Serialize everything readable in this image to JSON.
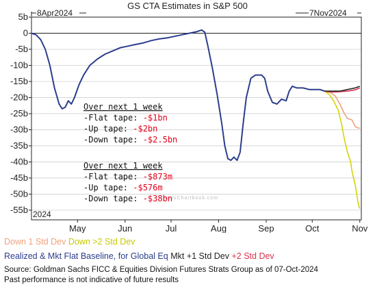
{
  "chart_data": {
    "type": "line",
    "title": "GS CTA Estimates in S&P 500",
    "start_label": "8Apr2024",
    "end_label": "7Nov2024",
    "year_label": "2024",
    "ylim": [
      -58,
      5
    ],
    "y_ticks": [
      5,
      0,
      -5,
      -10,
      -15,
      -20,
      -25,
      -30,
      -35,
      -40,
      -45,
      -50,
      -55
    ],
    "y_tick_labels": [
      "5b",
      "0",
      "-5b",
      "-10b",
      "-15b",
      "-20b",
      "-25b",
      "-30b",
      "-35b",
      "-40b",
      "-45b",
      "-50b",
      "-55b"
    ],
    "x_tick_labels": [
      {
        "label": "May",
        "day": 30
      },
      {
        "label": "Jun",
        "day": 61
      },
      {
        "label": "Jul",
        "day": 91
      },
      {
        "label": "Aug",
        "day": 122
      },
      {
        "label": "Sep",
        "day": 153
      },
      {
        "label": "Oct",
        "day": 183
      },
      {
        "label": "Nov",
        "day": 214
      }
    ],
    "xlim_days": [
      0,
      215
    ],
    "series": [
      {
        "name": "Realized & Mkt Flat Baseline, for Global Eq",
        "color": "#2b3d8c",
        "points": [
          [
            0,
            0
          ],
          [
            3,
            -0.5
          ],
          [
            6,
            -2
          ],
          [
            9,
            -5
          ],
          [
            12,
            -10
          ],
          [
            15,
            -17
          ],
          [
            18,
            -22
          ],
          [
            20,
            -23.5
          ],
          [
            22,
            -23
          ],
          [
            24,
            -21
          ],
          [
            26,
            -22
          ],
          [
            28,
            -20
          ],
          [
            31,
            -16
          ],
          [
            34,
            -13
          ],
          [
            38,
            -10
          ],
          [
            43,
            -8
          ],
          [
            48,
            -6.5
          ],
          [
            53,
            -5.5
          ],
          [
            58,
            -4.5
          ],
          [
            63,
            -4
          ],
          [
            68,
            -3.5
          ],
          [
            73,
            -3
          ],
          [
            78,
            -2.3
          ],
          [
            83,
            -1.8
          ],
          [
            88,
            -1.5
          ],
          [
            93,
            -1
          ],
          [
            98,
            -0.5
          ],
          [
            103,
            0
          ],
          [
            108,
            0.5
          ],
          [
            111,
            1
          ],
          [
            113,
            0.3
          ],
          [
            115,
            -4
          ],
          [
            118,
            -11
          ],
          [
            121,
            -19
          ],
          [
            124,
            -28
          ],
          [
            126,
            -35
          ],
          [
            128,
            -39
          ],
          [
            130,
            -39.5
          ],
          [
            132,
            -38.5
          ],
          [
            134,
            -39.5
          ],
          [
            136,
            -37
          ],
          [
            138,
            -28
          ],
          [
            140,
            -20
          ],
          [
            143,
            -14
          ],
          [
            146,
            -13
          ],
          [
            150,
            -13
          ],
          [
            152,
            -14
          ],
          [
            154,
            -18
          ],
          [
            157,
            -21.5
          ],
          [
            160,
            -22
          ],
          [
            163,
            -20.5
          ],
          [
            166,
            -21
          ],
          [
            168,
            -18
          ],
          [
            170,
            -16.5
          ],
          [
            173,
            -17
          ],
          [
            177,
            -17
          ],
          [
            181,
            -17.5
          ],
          [
            185,
            -17.5
          ],
          [
            188,
            -17.5
          ],
          [
            191,
            -18
          ]
        ]
      },
      {
        "name": "Mkt +1 Std Dev",
        "color": "#222222",
        "points": [
          [
            191,
            -18
          ],
          [
            196,
            -18
          ],
          [
            201,
            -18
          ],
          [
            206,
            -17.5
          ],
          [
            211,
            -17
          ],
          [
            214,
            -16.5
          ]
        ]
      },
      {
        "name": "+2 Std Dev",
        "color": "#d9304f",
        "points": [
          [
            191,
            -18
          ],
          [
            196,
            -18.3
          ],
          [
            201,
            -18.2
          ],
          [
            206,
            -18
          ],
          [
            211,
            -17.6
          ],
          [
            214,
            -17
          ]
        ]
      },
      {
        "name": "Down 1 Std Dev",
        "color": "#f0a07a",
        "points": [
          [
            191,
            -18
          ],
          [
            195,
            -18.5
          ],
          [
            198,
            -19.5
          ],
          [
            201,
            -22
          ],
          [
            204,
            -25
          ],
          [
            206,
            -26.5
          ],
          [
            209,
            -27
          ],
          [
            211,
            -29
          ],
          [
            213,
            -29.5
          ],
          [
            214,
            -29.5
          ]
        ]
      },
      {
        "name": "Down >2 Std Dev",
        "color": "#d4d400",
        "points": [
          [
            191,
            -18
          ],
          [
            194,
            -19
          ],
          [
            197,
            -21
          ],
          [
            200,
            -24
          ],
          [
            202,
            -28
          ],
          [
            204,
            -33
          ],
          [
            206,
            -37
          ],
          [
            208,
            -40
          ],
          [
            209,
            -43
          ],
          [
            211,
            -47
          ],
          [
            212,
            -50
          ],
          [
            213,
            -53
          ],
          [
            214,
            -54.5
          ]
        ]
      }
    ],
    "annotation": {
      "block1": {
        "header": "Over next 1 week",
        "lines": [
          {
            "label": "-Flat tape: ",
            "value": "-$1bn"
          },
          {
            "label": "-Up tape: ",
            "value": "-$2bn"
          },
          {
            "label": "-Down tape: ",
            "value": "-$2.5bn"
          }
        ]
      },
      "block2": {
        "header": "Over next 1 week",
        "lines": [
          {
            "label": "-Flat tape: ",
            "value": "-$873m"
          },
          {
            "label": "-Up tape: ",
            "value": "-$576m"
          },
          {
            "label": "-Down tape: ",
            "value": "-$38bn"
          }
        ]
      }
    },
    "watermark": "DailyChartbook.com"
  },
  "legend": {
    "row1": [
      {
        "label": "Down 1 Std Dev",
        "color": "#f0a07a"
      },
      {
        "label": "Down >2 Std Dev",
        "color": "#d4d400"
      }
    ],
    "row2": [
      {
        "label": "Realized & Mkt Flat Baseline, for Global Eq",
        "color": "#2b3d8c"
      },
      {
        "label": "Mkt +1 Std Dev",
        "color": "#222222"
      },
      {
        "label": "+2 Std Dev",
        "color": "#d9304f"
      }
    ]
  },
  "source": {
    "line1": "Source: Goldman Sachs FICC & Equities Division Futures Strats Group as of 07-Oct-2024",
    "line2": "Past performance is not indicative of future results"
  }
}
